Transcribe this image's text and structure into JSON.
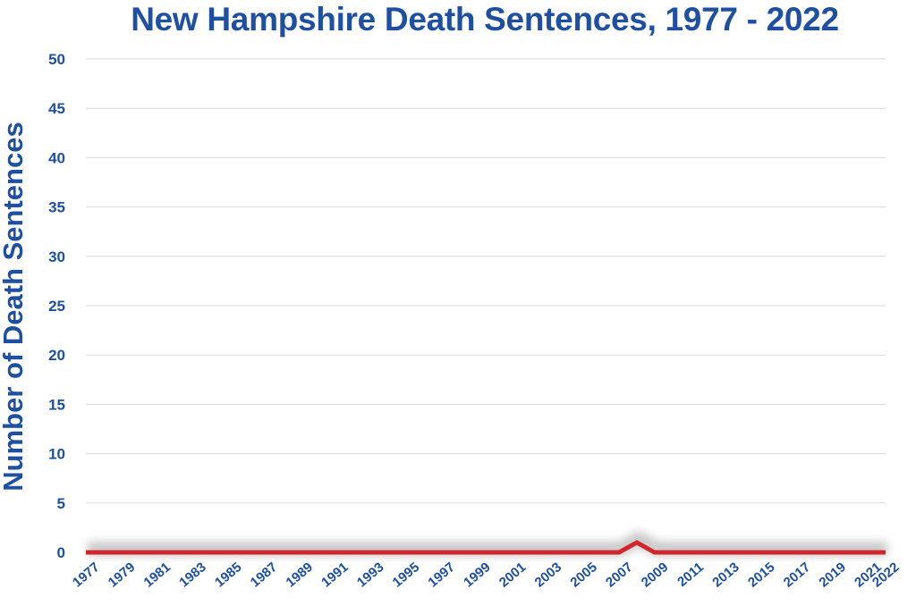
{
  "chart_data": {
    "type": "line",
    "title": "New Hampshire Death Sentences, 1977 - 2022",
    "xlabel": "",
    "ylabel": "Number of Death Sentences",
    "ylim": [
      0,
      50
    ],
    "yticks": [
      0,
      5,
      10,
      15,
      20,
      25,
      30,
      35,
      40,
      45,
      50
    ],
    "xlim": [
      1977,
      2022
    ],
    "xtick_labels": [
      "1977",
      "1979",
      "1981",
      "1983",
      "1985",
      "1987",
      "1989",
      "1991",
      "1993",
      "1995",
      "1997",
      "1999",
      "2001",
      "2003",
      "2005",
      "2007",
      "2009",
      "2011",
      "2013",
      "2015",
      "2017",
      "2019",
      "2021",
      "2022"
    ],
    "grid": true,
    "legend": "none",
    "series": [
      {
        "color": "#d0262d",
        "x": [
          1977,
          1978,
          1979,
          1980,
          1981,
          1982,
          1983,
          1984,
          1985,
          1986,
          1987,
          1988,
          1989,
          1990,
          1991,
          1992,
          1993,
          1994,
          1995,
          1996,
          1997,
          1998,
          1999,
          2000,
          2001,
          2002,
          2003,
          2004,
          2005,
          2006,
          2007,
          2008,
          2009,
          2010,
          2011,
          2012,
          2013,
          2014,
          2015,
          2016,
          2017,
          2018,
          2019,
          2020,
          2021,
          2022
        ],
        "values": [
          0,
          0,
          0,
          0,
          0,
          0,
          0,
          0,
          0,
          0,
          0,
          0,
          0,
          0,
          0,
          0,
          0,
          0,
          0,
          0,
          0,
          0,
          0,
          0,
          0,
          0,
          0,
          0,
          0,
          0,
          0,
          1,
          0,
          0,
          0,
          0,
          0,
          0,
          0,
          0,
          0,
          0,
          0,
          0,
          0,
          0
        ]
      }
    ],
    "colors": {
      "text": "#1f4fa0",
      "grid": "#d9d9d9",
      "line": "#d0262d",
      "shadow": "#9a9a9a"
    }
  }
}
